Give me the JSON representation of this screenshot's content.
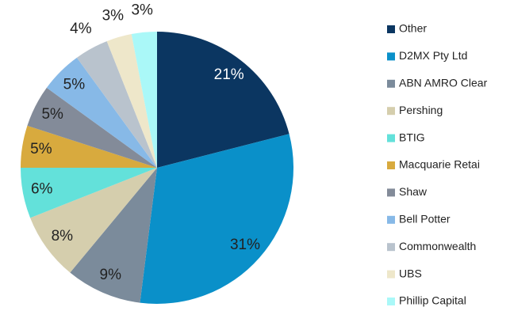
{
  "chart_data": {
    "type": "pie",
    "categories": [
      "Other",
      "D2MX Pty Ltd",
      "ABN AMRO Clear",
      "Pershing",
      "BTIG",
      "Macquarie Retai",
      "Shaw",
      "Bell Potter",
      "Commonwealth",
      "UBS",
      "Phillip Capital"
    ],
    "values": [
      21,
      31,
      9,
      8,
      6,
      5,
      5,
      5,
      4,
      3,
      3
    ],
    "value_labels": [
      "21%",
      "31%",
      "9%",
      "8%",
      "6%",
      "5%",
      "5%",
      "5%",
      "4%",
      "3%",
      "3%"
    ],
    "colors": [
      "#0b3661",
      "#0a90c9",
      "#7b8b9b",
      "#d5cead",
      "#63e1da",
      "#d8aa3e",
      "#838b99",
      "#87b9e7",
      "#b9c3cd",
      "#eee7ca",
      "#aaf8f8"
    ],
    "legend": "right"
  }
}
